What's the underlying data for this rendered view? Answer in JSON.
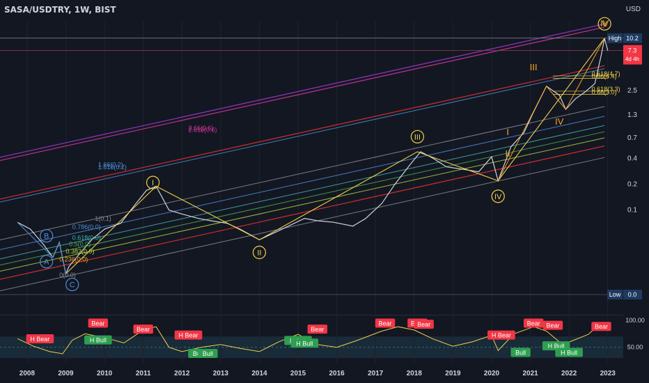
{
  "header": {
    "symbol": "SASA/USDTRY, 1W, BIST",
    "currency": "USD"
  },
  "colors": {
    "background": "#131722",
    "candle": "#d1d4dc",
    "wave": "#f2d24a",
    "pink": "#d1359b",
    "red": "#e0312f",
    "blue": "#4f8fd8",
    "grey": "#8a8d99",
    "teal": "#3fb6b0",
    "green": "#4caf50",
    "lime": "#b6d43a",
    "orange": "#f5a623",
    "badge_red": "#f23645",
    "badge_green": "#2e9e4f",
    "rsi": "#f2d24a"
  },
  "chart_data": [
    {
      "type": "line",
      "title": "SASA/USDTRY, 1W, BIST",
      "scale": "log",
      "xlabel": "",
      "ylabel": "",
      "x_ticks": [
        "2008",
        "2009",
        "2010",
        "2011",
        "2012",
        "2013",
        "2014",
        "2015",
        "2016",
        "2017",
        "2018",
        "2019",
        "2020",
        "2021",
        "2022",
        "2023"
      ],
      "y_ticks": [
        "2.5",
        "1.3",
        "0.7",
        "0.4",
        "0.2",
        "0.1"
      ],
      "price_tags": [
        {
          "label": "High",
          "value": "10.2"
        },
        {
          "label": "",
          "value": "7.3",
          "sub": "4d 4h",
          "highlight": true
        },
        {
          "label": "Low",
          "value": "0.0"
        }
      ],
      "series": [
        {
          "values": [
            [
              "2007-10",
              0.072
            ],
            [
              "2008-02",
              0.06
            ],
            [
              "2008-06",
              0.04
            ],
            [
              "2008-09",
              0.028
            ],
            [
              "2008-11",
              0.042
            ],
            [
              "2009-01",
              0.018
            ],
            [
              "2009-02",
              0.022
            ],
            [
              "2009-05",
              0.03
            ],
            [
              "2009-09",
              0.045
            ],
            [
              "2010-01",
              0.06
            ],
            [
              "2010-06",
              0.07
            ],
            [
              "2010-10",
              0.11
            ],
            [
              "2011-02",
              0.17
            ],
            [
              "2011-05",
              0.19
            ],
            [
              "2011-09",
              0.1
            ],
            [
              "2012-01",
              0.09
            ],
            [
              "2012-06",
              0.08
            ],
            [
              "2012-10",
              0.075
            ],
            [
              "2013-03",
              0.07
            ],
            [
              "2013-07",
              0.06
            ],
            [
              "2014-01",
              0.045
            ],
            [
              "2014-06",
              0.055
            ],
            [
              "2014-10",
              0.065
            ],
            [
              "2015-03",
              0.08
            ],
            [
              "2015-07",
              0.075
            ],
            [
              "2015-12",
              0.072
            ],
            [
              "2016-06",
              0.065
            ],
            [
              "2016-10",
              0.08
            ],
            [
              "2017-03",
              0.12
            ],
            [
              "2017-07",
              0.2
            ],
            [
              "2017-12",
              0.35
            ],
            [
              "2018-03",
              0.48
            ],
            [
              "2018-07",
              0.4
            ],
            [
              "2018-11",
              0.32
            ],
            [
              "2019-04",
              0.3
            ],
            [
              "2019-09",
              0.28
            ],
            [
              "2020-01",
              0.42
            ],
            [
              "2020-03",
              0.22
            ],
            [
              "2020-07",
              0.55
            ],
            [
              "2020-11",
              0.8
            ],
            [
              "2021-02",
              1.4
            ],
            [
              "2021-06",
              2.8
            ],
            [
              "2021-10",
              2.2
            ],
            [
              "2021-12",
              1.5
            ],
            [
              "2022-03",
              2.0
            ],
            [
              "2022-06",
              2.4
            ],
            [
              "2022-09",
              3.0
            ],
            [
              "2022-11",
              6.5
            ],
            [
              "2022-12",
              10.2
            ],
            [
              "2023-01",
              7.3
            ]
          ]
        }
      ],
      "wave_labels": [
        {
          "text": "I",
          "date": "2011-04",
          "value": 0.21,
          "style": "circle"
        },
        {
          "text": "II",
          "date": "2014-01",
          "value": 0.032,
          "style": "circle"
        },
        {
          "text": "III",
          "date": "2018-02",
          "value": 0.72,
          "style": "circle"
        },
        {
          "text": "IV",
          "date": "2020-03",
          "value": 0.145,
          "style": "circle"
        },
        {
          "text": "V",
          "date": "2022-12",
          "value": 15.0,
          "style": "circle"
        },
        {
          "text": "A",
          "date": "2008-07",
          "value": 0.025,
          "style": "circle-blue"
        },
        {
          "text": "B",
          "date": "2008-07",
          "value": 0.05,
          "style": "circle-blue"
        },
        {
          "text": "C",
          "date": "2009-03",
          "value": 0.0135,
          "style": "circle-blue"
        },
        {
          "text": "I",
          "date": "2020-06",
          "value": 0.75,
          "style": "roman-orange"
        },
        {
          "text": "II",
          "date": "2020-06",
          "value": 0.42,
          "style": "roman-orange"
        },
        {
          "text": "III",
          "date": "2021-02",
          "value": 4.3,
          "style": "roman-orange"
        },
        {
          "text": "IV",
          "date": "2021-10",
          "value": 1.0,
          "style": "roman-orange"
        },
        {
          "text": "IV",
          "date": "2022-12",
          "value": 14.0,
          "style": "roman-orange-small"
        }
      ],
      "fib_labels": [
        {
          "text": "2.66(0.6)",
          "date": "2012-03",
          "value": 0.86,
          "color": "pink"
        },
        {
          "text": "2.618(0.6)",
          "date": "2012-03",
          "value": 0.82,
          "color": "pink"
        },
        {
          "text": "1.66(0.2)",
          "date": "2009-11",
          "value": 0.32,
          "color": "blue"
        },
        {
          "text": "1.618(0.2)",
          "date": "2009-11",
          "value": 0.3,
          "color": "blue"
        },
        {
          "text": "1(0.1)",
          "date": "2009-10",
          "value": 0.075,
          "color": "grey"
        },
        {
          "text": "0.786(0.0)",
          "date": "2009-03",
          "value": 0.06,
          "color": "blue"
        },
        {
          "text": "0.618(0.0)",
          "date": "2009-03",
          "value": 0.045,
          "color": "teal"
        },
        {
          "text": "0.5(0.0)",
          "date": "2009-02",
          "value": 0.038,
          "color": "green"
        },
        {
          "text": "0.382(0.0)",
          "date": "2009-01",
          "value": 0.031,
          "color": "lime"
        },
        {
          "text": "0.236(0.0)",
          "date": "2008-11",
          "value": 0.025,
          "color": "orange"
        },
        {
          "text": "0(0.0)",
          "date": "2008-11",
          "value": 0.0165,
          "color": "grey"
        },
        {
          "text": "0.618(4.7)",
          "date": "2022-08",
          "value": 3.7,
          "color": "wave"
        },
        {
          "text": "0.66(4.4)",
          "date": "2022-08",
          "value": 3.45,
          "color": "wave"
        },
        {
          "text": "0.618(3.3)",
          "date": "2022-08",
          "value": 2.45,
          "color": "wave"
        },
        {
          "text": "0.66(3.0)",
          "date": "2022-08",
          "value": 2.25,
          "color": "wave"
        }
      ]
    },
    {
      "type": "line",
      "title": "",
      "y_ticks": [
        "100.00",
        "50.00"
      ],
      "series": [
        {
          "values": [
            [
              "2007-10",
              66
            ],
            [
              "2008-03",
              52
            ],
            [
              "2008-08",
              42
            ],
            [
              "2008-12",
              38
            ],
            [
              "2009-03",
              63
            ],
            [
              "2009-07",
              75
            ],
            [
              "2010-01",
              68
            ],
            [
              "2010-07",
              58
            ],
            [
              "2011-01",
              82
            ],
            [
              "2011-05",
              88
            ],
            [
              "2011-09",
              50
            ],
            [
              "2012-01",
              42
            ],
            [
              "2012-07",
              50
            ],
            [
              "2013-01",
              55
            ],
            [
              "2013-07",
              48
            ],
            [
              "2014-01",
              42
            ],
            [
              "2014-07",
              60
            ],
            [
              "2015-01",
              74
            ],
            [
              "2015-07",
              55
            ],
            [
              "2016-01",
              50
            ],
            [
              "2016-07",
              62
            ],
            [
              "2017-03",
              80
            ],
            [
              "2017-08",
              88
            ],
            [
              "2018-01",
              82
            ],
            [
              "2018-07",
              65
            ],
            [
              "2019-01",
              52
            ],
            [
              "2019-07",
              60
            ],
            [
              "2020-01",
              72
            ],
            [
              "2020-03",
              44
            ],
            [
              "2020-08",
              75
            ],
            [
              "2021-02",
              88
            ],
            [
              "2021-06",
              80
            ],
            [
              "2021-11",
              55
            ],
            [
              "2022-02",
              62
            ],
            [
              "2022-07",
              74
            ],
            [
              "2022-11",
              96
            ],
            [
              "2023-01",
              84
            ]
          ]
        }
      ],
      "signals": [
        {
          "text": "H Bear",
          "date": "2008-05",
          "value": 65,
          "kind": "bear"
        },
        {
          "text": "Bear",
          "date": "2009-11",
          "value": 94,
          "kind": "bear"
        },
        {
          "text": "H Bull",
          "date": "2009-11",
          "value": 63,
          "kind": "bull"
        },
        {
          "text": "Bear",
          "date": "2011-01",
          "value": 83,
          "kind": "bear"
        },
        {
          "text": "H Bear",
          "date": "2012-03",
          "value": 72,
          "kind": "bear"
        },
        {
          "text": "Bull",
          "date": "2012-06",
          "value": 38,
          "kind": "bull"
        },
        {
          "text": "Bull",
          "date": "2012-09",
          "value": 38,
          "kind": "bull"
        },
        {
          "text": "Bear",
          "date": "2015-07",
          "value": 83,
          "kind": "bear"
        },
        {
          "text": "H Bull",
          "date": "2015-01",
          "value": 62,
          "kind": "bull"
        },
        {
          "text": "H Bull",
          "date": "2015-03",
          "value": 57,
          "kind": "bull"
        },
        {
          "text": "Bear",
          "date": "2017-04",
          "value": 94,
          "kind": "bear"
        },
        {
          "text": "Bear",
          "date": "2018-02",
          "value": 94,
          "kind": "bear"
        },
        {
          "text": "Bear",
          "date": "2018-04",
          "value": 92,
          "kind": "bear"
        },
        {
          "text": "H Bear",
          "date": "2020-04",
          "value": 72,
          "kind": "bear"
        },
        {
          "text": "Bull",
          "date": "2020-10",
          "value": 40,
          "kind": "bull"
        },
        {
          "text": "Bear",
          "date": "2021-02",
          "value": 94,
          "kind": "bear"
        },
        {
          "text": "Bear",
          "date": "2021-08",
          "value": 90,
          "kind": "bear"
        },
        {
          "text": "H Bull",
          "date": "2021-09",
          "value": 52,
          "kind": "bull"
        },
        {
          "text": "H Bull",
          "date": "2022-01",
          "value": 40,
          "kind": "bull"
        },
        {
          "text": "Bear",
          "date": "2022-11",
          "value": 88,
          "kind": "bear"
        }
      ]
    }
  ]
}
